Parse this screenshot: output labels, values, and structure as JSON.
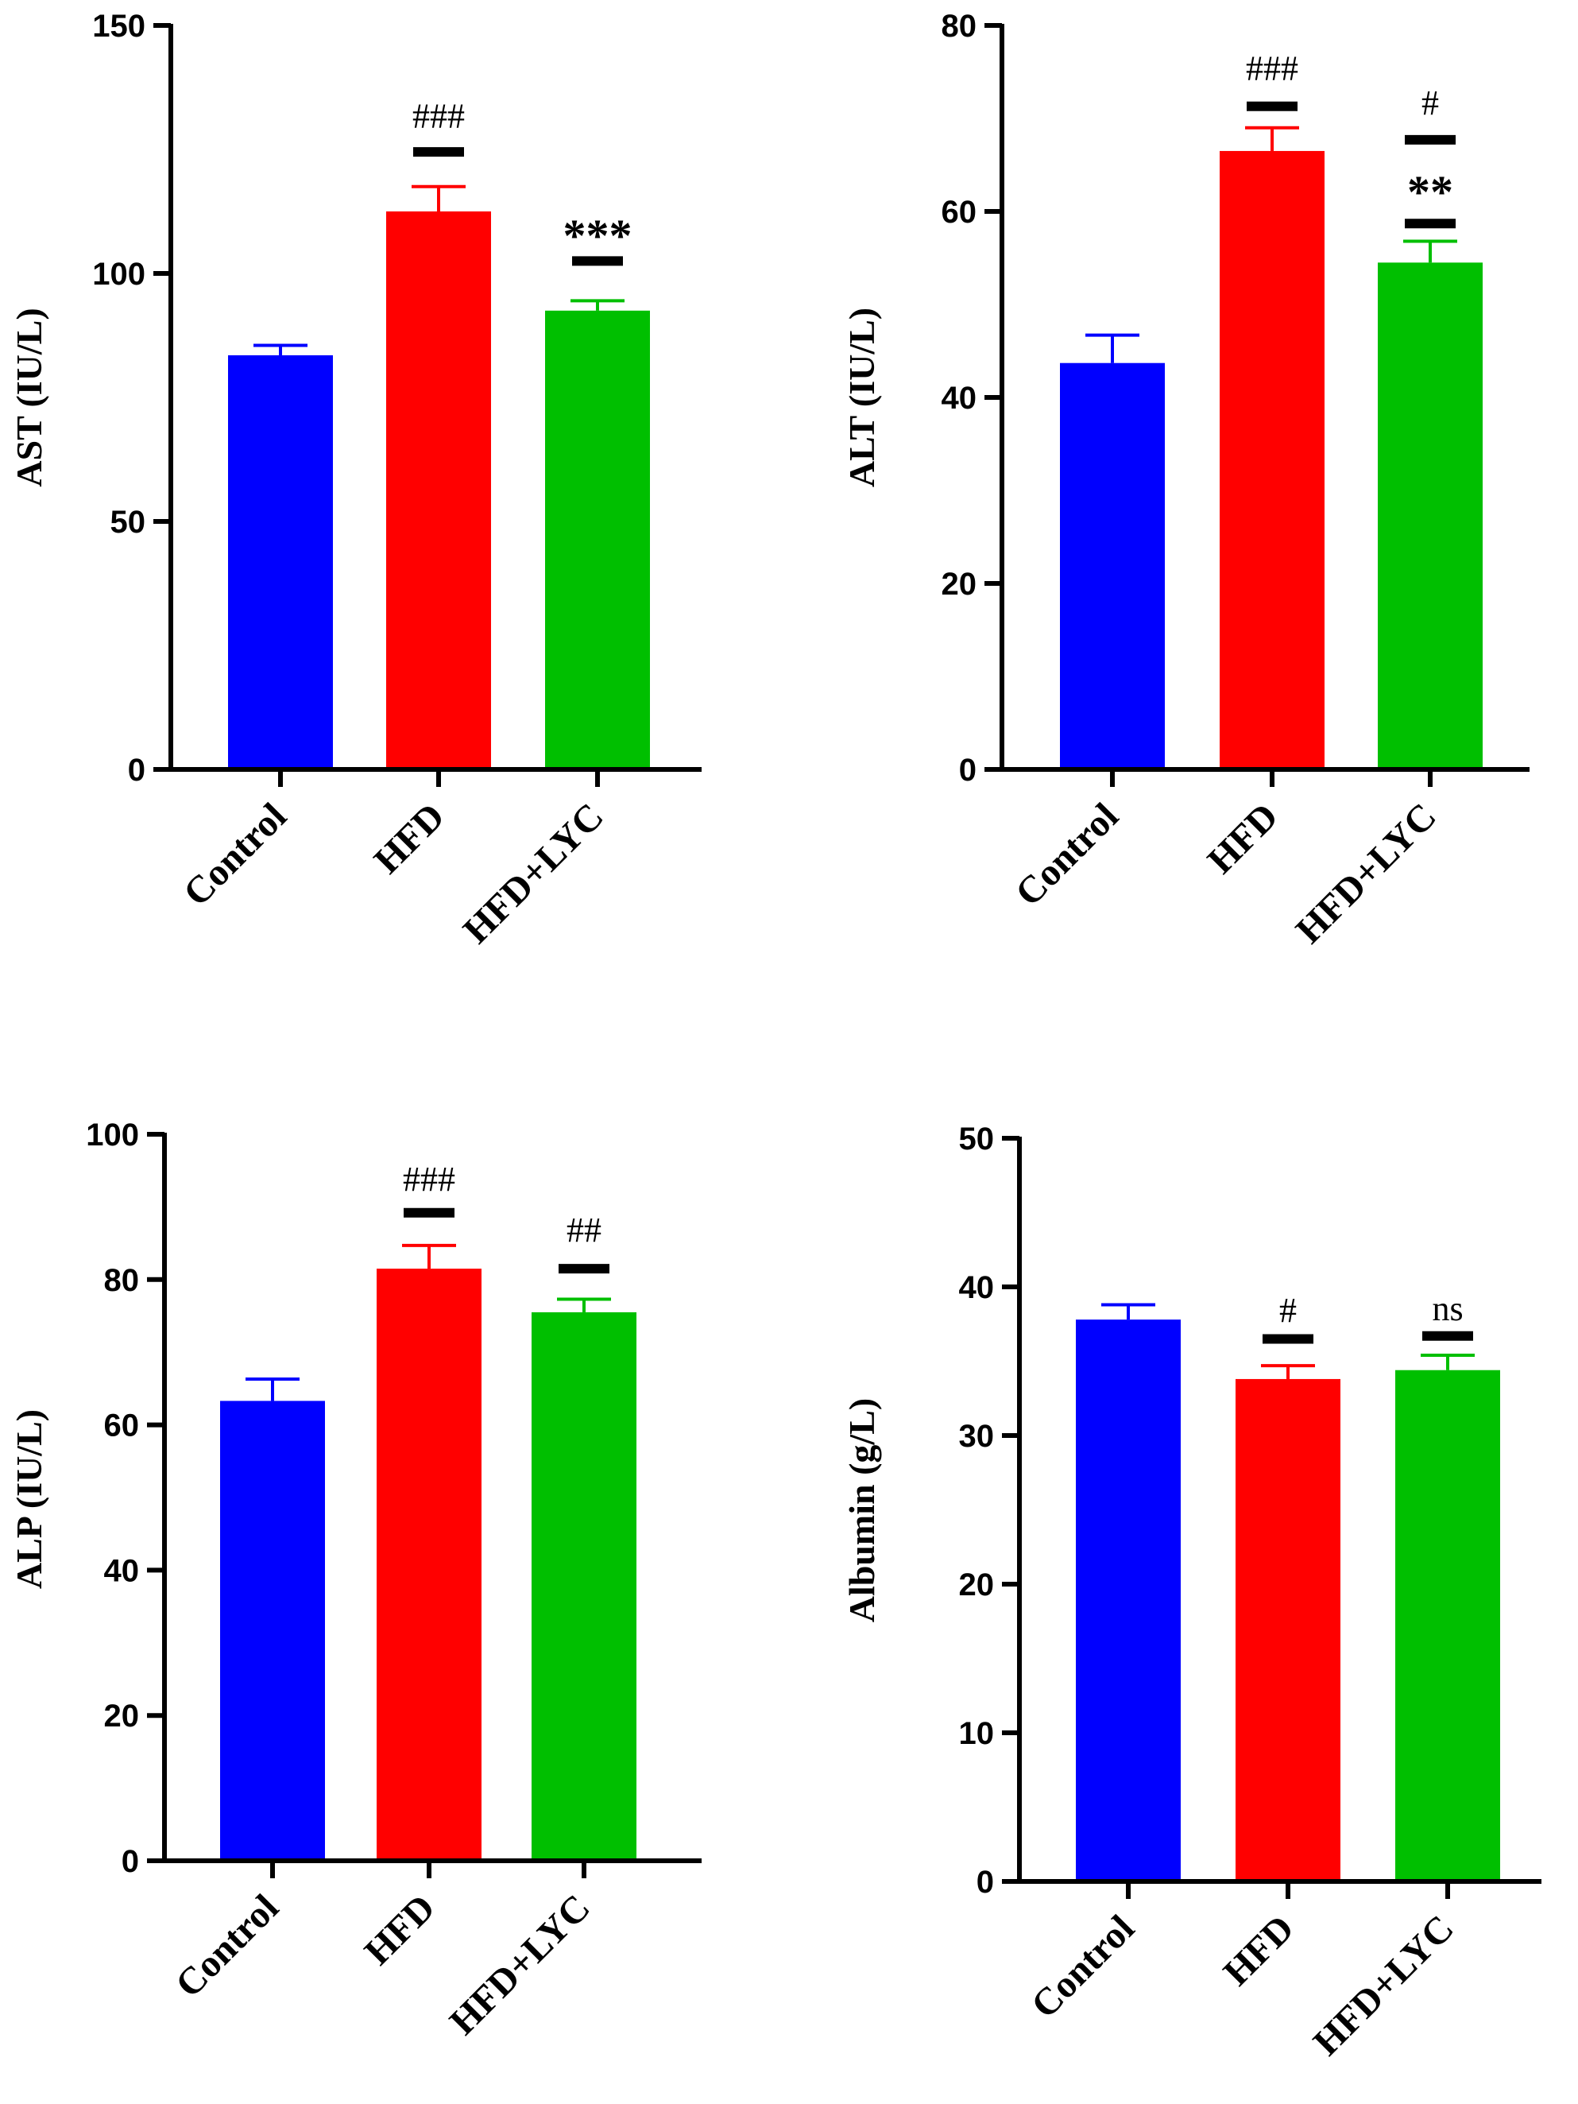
{
  "colors": {
    "control": "#0000ff",
    "hfd": "#ff0000",
    "hfd_lyc": "#00bf00",
    "axis": "#000000"
  },
  "chart_data": [
    {
      "type": "bar",
      "ylabel": "AST (IU/L)",
      "categories": [
        "Control",
        "HFD",
        "HFD+LYC"
      ],
      "values": [
        83.5,
        112.5,
        92.5
      ],
      "errors": [
        2.0,
        5.0,
        2.0
      ],
      "ylim": [
        0,
        150
      ],
      "yticks": [
        0,
        50,
        100,
        150
      ],
      "annotations": [
        {
          "bar": 1,
          "text": "###",
          "line_at": 124.5,
          "text_at": 132,
          "bold": false
        },
        {
          "bar": 2,
          "text": "***",
          "line_at": 102.5,
          "text_at": 108,
          "bold": true
        }
      ]
    },
    {
      "type": "bar",
      "ylabel": "ALT (IU/L)",
      "categories": [
        "Control",
        "HFD",
        "HFD+LYC"
      ],
      "values": [
        43.7,
        66.5,
        54.5
      ],
      "errors": [
        3.0,
        2.5,
        2.3
      ],
      "ylim": [
        0,
        80
      ],
      "yticks": [
        0,
        20,
        40,
        60,
        80
      ],
      "annotations": [
        {
          "bar": 1,
          "text": "###",
          "line_at": 71.3,
          "text_at": 75.5,
          "bold": false
        },
        {
          "bar": 2,
          "text": "#",
          "line_at": 67.7,
          "text_at": 71.8,
          "bold": false
        },
        {
          "bar": 2,
          "text": "**",
          "line_at": 58.7,
          "text_at": 62.3,
          "bold": true
        }
      ]
    },
    {
      "type": "bar",
      "ylabel": "ALP (IU/L)",
      "categories": [
        "Control",
        "HFD",
        "HFD+LYC"
      ],
      "values": [
        63.3,
        81.5,
        75.5
      ],
      "errors": [
        3.0,
        3.2,
        1.8
      ],
      "ylim": [
        0,
        100
      ],
      "yticks": [
        0,
        20,
        40,
        60,
        80,
        100
      ],
      "annotations": [
        {
          "bar": 1,
          "text": "###",
          "line_at": 89.2,
          "text_at": 94,
          "bold": false
        },
        {
          "bar": 2,
          "text": "##",
          "line_at": 81.5,
          "text_at": 87,
          "bold": false
        }
      ]
    },
    {
      "type": "bar",
      "ylabel": "Albumin (g/L)",
      "categories": [
        "Control",
        "HFD",
        "HFD+LYC"
      ],
      "values": [
        37.8,
        33.8,
        34.4
      ],
      "errors": [
        1.0,
        0.9,
        1.0
      ],
      "ylim": [
        0,
        50
      ],
      "yticks": [
        0,
        10,
        20,
        30,
        40,
        50
      ],
      "annotations": [
        {
          "bar": 1,
          "text": "#",
          "line_at": 36.5,
          "text_at": 38.5,
          "bold": false
        },
        {
          "bar": 2,
          "text": "ns",
          "line_at": 36.7,
          "text_at": 38.6,
          "bold": false
        }
      ]
    }
  ]
}
